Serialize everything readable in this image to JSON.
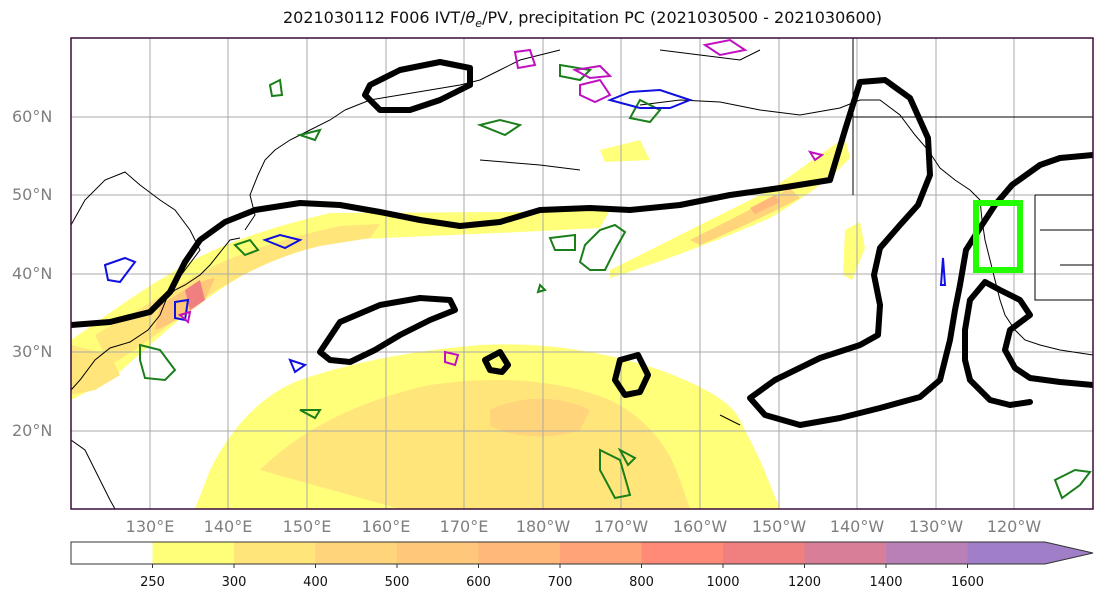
{
  "title": {
    "prefix": "2021030112 F006 IVT/",
    "theta": "θ",
    "theta_sub": "e",
    "suffix": "/PV, precipitation PC (2021030500 - 2021030600)"
  },
  "lat_labels": [
    "60°N",
    "50°N",
    "40°N",
    "30°N",
    "20°N"
  ],
  "lon_labels": [
    "130°E",
    "140°E",
    "150°E",
    "160°E",
    "170°E",
    "180°W",
    "170°W",
    "160°W",
    "150°W",
    "140°W",
    "130°W",
    "120°W"
  ],
  "colorbar": {
    "ticks": [
      "250",
      "300",
      "400",
      "500",
      "600",
      "700",
      "800",
      "1000",
      "1200",
      "1400",
      "1600"
    ],
    "colors": [
      "#ffffff",
      "#ffff7a",
      "#ffe57a",
      "#ffd47a",
      "#ffc77a",
      "#ffb77a",
      "#ffa478",
      "#ff8a78",
      "#f08080",
      "#d97e98",
      "#b980b8",
      "#a07ec8"
    ]
  },
  "colors": {
    "ivt_contour": "#000000",
    "theta_e_contour": "#1a7f1a",
    "pv_contour_blue": "#1010e0",
    "pv_contour_magenta": "#c010c0",
    "target_box": "#22ff00",
    "grid": "#aaaaaa",
    "frame": "#3a0a3a"
  }
}
